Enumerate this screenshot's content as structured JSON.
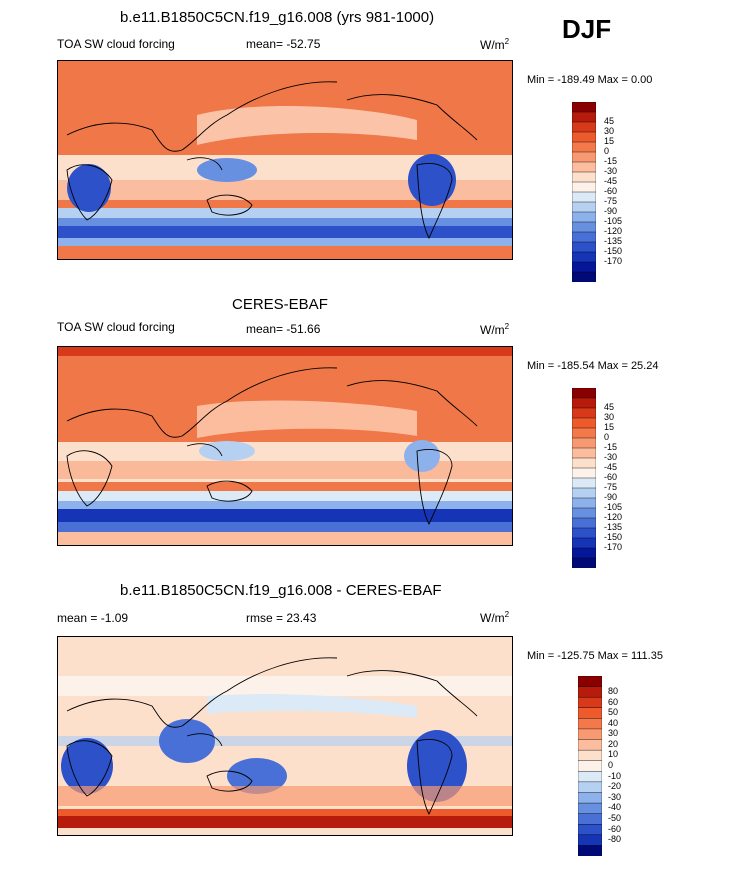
{
  "figure": {
    "season": "DJF",
    "panels": [
      {
        "title": "b.e11.B1850C5CN.f19_g16.008 (yrs 981-1000)",
        "left_label": "TOA SW cloud forcing",
        "center_label": "mean= -52.75",
        "units": "W/m",
        "units_sup": "2",
        "minmax": "Min = -189.49 Max =   0.00",
        "colorbar_colors": [
          "#8a0000",
          "#b71b0b",
          "#d8391a",
          "#ed5a2c",
          "#f4794a",
          "#f89a71",
          "#fbbd9e",
          "#fde0cc",
          "#fdf2e9",
          "#dce9f7",
          "#b6d0f1",
          "#8db1ea",
          "#6890e0",
          "#4870d6",
          "#2c51c9",
          "#1534b6",
          "#05169a",
          "#000a77"
        ],
        "colorbar_labels": [
          "45",
          "30",
          "15",
          "0",
          "-15",
          "-30",
          "-45",
          "-60",
          "-75",
          "-90",
          "-105",
          "-120",
          "-135",
          "-150",
          "-170"
        ]
      },
      {
        "title": "CERES-EBAF",
        "left_label": "TOA SW cloud forcing",
        "center_label": "mean= -51.66",
        "units": "W/m",
        "units_sup": "2",
        "minmax": "Min = -185.54 Max =  25.24",
        "colorbar_colors": [
          "#8a0000",
          "#b71b0b",
          "#d8391a",
          "#ed5a2c",
          "#f4794a",
          "#f89a71",
          "#fbbd9e",
          "#fde0cc",
          "#fdf2e9",
          "#dce9f7",
          "#b6d0f1",
          "#8db1ea",
          "#6890e0",
          "#4870d6",
          "#2c51c9",
          "#1534b6",
          "#05169a",
          "#000a77"
        ],
        "colorbar_labels": [
          "45",
          "30",
          "15",
          "0",
          "-15",
          "-30",
          "-45",
          "-60",
          "-75",
          "-90",
          "-105",
          "-120",
          "-135",
          "-150",
          "-170"
        ]
      },
      {
        "title": "b.e11.B1850C5CN.f19_g16.008 - CERES-EBAF",
        "left_label": "mean =  -1.09",
        "center_label": "rmse =  23.43",
        "units": "W/m",
        "units_sup": "2",
        "minmax": "Min = -125.75 Max = 111.35",
        "colorbar_colors": [
          "#8a0000",
          "#b71b0b",
          "#d8391a",
          "#ed5a2c",
          "#f4794a",
          "#f89a71",
          "#fbbd9e",
          "#fde0cc",
          "#fdf2e9",
          "#dce9f7",
          "#b6d0f1",
          "#8db1ea",
          "#6890e0",
          "#4870d6",
          "#2c51c9",
          "#1534b6",
          "#000a77"
        ],
        "colorbar_labels": [
          "80",
          "60",
          "50",
          "40",
          "30",
          "20",
          "10",
          "0",
          "-10",
          "-20",
          "-30",
          "-40",
          "-50",
          "-60",
          "-80"
        ]
      }
    ]
  },
  "chart_data": [
    {
      "type": "heatmap",
      "title": "b.e11.B1850C5CN.f19_g16.008 (yrs 981-1000)",
      "variable": "TOA SW cloud forcing",
      "mean": -52.75,
      "min": -189.49,
      "max": 0.0,
      "units": "W/m2",
      "colorbar_levels": [
        45,
        30,
        15,
        0,
        -15,
        -30,
        -45,
        -60,
        -75,
        -90,
        -105,
        -120,
        -135,
        -150,
        -170
      ]
    },
    {
      "type": "heatmap",
      "title": "CERES-EBAF",
      "variable": "TOA SW cloud forcing",
      "mean": -51.66,
      "min": -185.54,
      "max": 25.24,
      "units": "W/m2",
      "colorbar_levels": [
        45,
        30,
        15,
        0,
        -15,
        -30,
        -45,
        -60,
        -75,
        -90,
        -105,
        -120,
        -135,
        -150,
        -170
      ]
    },
    {
      "type": "heatmap",
      "title": "b.e11.B1850C5CN.f19_g16.008 - CERES-EBAF",
      "mean": -1.09,
      "rmse": 23.43,
      "min": -125.75,
      "max": 111.35,
      "units": "W/m2",
      "colorbar_levels": [
        80,
        60,
        50,
        40,
        30,
        20,
        10,
        0,
        -10,
        -20,
        -30,
        -40,
        -50,
        -60,
        -80
      ]
    }
  ]
}
